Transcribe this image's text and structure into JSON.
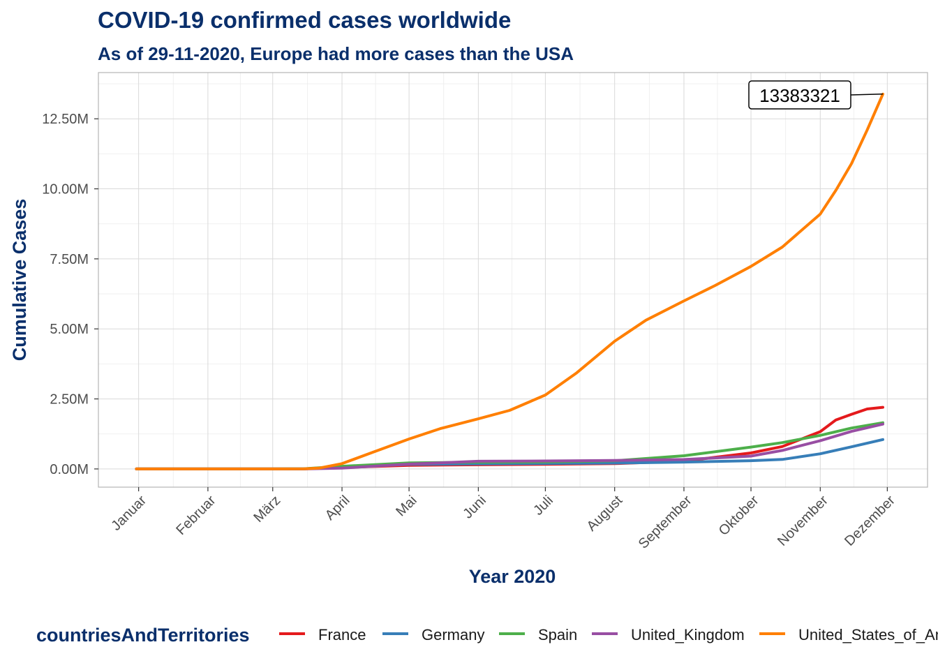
{
  "chart_data": {
    "type": "line",
    "title": "COVID-19 confirmed cases worldwide",
    "subtitle": "As of 29-11-2020, Europe had more cases than the USA",
    "xlabel": "Year 2020",
    "ylabel": "Cumulative Cases",
    "x_ticks": [
      "Januar",
      "Februar",
      "März",
      "April",
      "Mai",
      "Juni",
      "Juli",
      "August",
      "September",
      "Oktober",
      "November",
      "Dezember"
    ],
    "x_tick_dates": [
      "2020-01-01",
      "2020-02-01",
      "2020-03-01",
      "2020-04-01",
      "2020-05-01",
      "2020-06-01",
      "2020-07-01",
      "2020-08-01",
      "2020-09-01",
      "2020-10-01",
      "2020-11-01",
      "2020-12-01"
    ],
    "xlim": [
      "2019-12-14",
      "2020-12-19"
    ],
    "y_ticks": [
      "0.00M",
      "2.50M",
      "5.00M",
      "7.50M",
      "10.00M",
      "12.50M"
    ],
    "y_tick_values": [
      0,
      2500000,
      5000000,
      7500000,
      10000000,
      12500000
    ],
    "ylim": [
      -650000,
      14150000
    ],
    "grid": true,
    "legend": {
      "title": "countriesAndTerritories",
      "position": "bottom"
    },
    "annotation": {
      "label": "13383321",
      "date": "2020-11-29",
      "value": 13383321
    },
    "series": [
      {
        "name": "France",
        "color": "#e41a1c",
        "points": [
          [
            "2019-12-31",
            0
          ],
          [
            "2020-03-01",
            100
          ],
          [
            "2020-03-15",
            5400
          ],
          [
            "2020-04-01",
            52000
          ],
          [
            "2020-05-01",
            130000
          ],
          [
            "2020-06-01",
            150000
          ],
          [
            "2020-07-01",
            165000
          ],
          [
            "2020-08-01",
            190000
          ],
          [
            "2020-09-01",
            280000
          ],
          [
            "2020-10-01",
            570000
          ],
          [
            "2020-10-15",
            800000
          ],
          [
            "2020-11-01",
            1330000
          ],
          [
            "2020-11-08",
            1750000
          ],
          [
            "2020-11-15",
            1950000
          ],
          [
            "2020-11-22",
            2140000
          ],
          [
            "2020-11-29",
            2200000
          ]
        ]
      },
      {
        "name": "Germany",
        "color": "#377eb8",
        "points": [
          [
            "2019-12-31",
            0
          ],
          [
            "2020-03-01",
            130
          ],
          [
            "2020-03-15",
            4800
          ],
          [
            "2020-04-01",
            72000
          ],
          [
            "2020-05-01",
            162000
          ],
          [
            "2020-06-01",
            181000
          ],
          [
            "2020-07-01",
            195000
          ],
          [
            "2020-08-01",
            210000
          ],
          [
            "2020-09-01",
            245000
          ],
          [
            "2020-10-01",
            295000
          ],
          [
            "2020-10-15",
            340000
          ],
          [
            "2020-11-01",
            540000
          ],
          [
            "2020-11-15",
            790000
          ],
          [
            "2020-11-29",
            1050000
          ]
        ]
      },
      {
        "name": "Spain",
        "color": "#4daf4a",
        "points": [
          [
            "2019-12-31",
            0
          ],
          [
            "2020-03-01",
            80
          ],
          [
            "2020-03-15",
            7700
          ],
          [
            "2020-04-01",
            95000
          ],
          [
            "2020-05-01",
            215000
          ],
          [
            "2020-06-01",
            240000
          ],
          [
            "2020-07-01",
            250000
          ],
          [
            "2020-08-01",
            290000
          ],
          [
            "2020-09-01",
            470000
          ],
          [
            "2020-10-01",
            780000
          ],
          [
            "2020-10-15",
            940000
          ],
          [
            "2020-11-01",
            1200000
          ],
          [
            "2020-11-15",
            1460000
          ],
          [
            "2020-11-29",
            1650000
          ]
        ]
      },
      {
        "name": "United_Kingdom",
        "color": "#984ea3",
        "points": [
          [
            "2019-12-31",
            0
          ],
          [
            "2020-03-01",
            36
          ],
          [
            "2020-03-15",
            1140
          ],
          [
            "2020-04-01",
            29000
          ],
          [
            "2020-05-01",
            172000
          ],
          [
            "2020-06-01",
            275000
          ],
          [
            "2020-07-01",
            285000
          ],
          [
            "2020-08-01",
            303000
          ],
          [
            "2020-09-01",
            336000
          ],
          [
            "2020-10-01",
            460000
          ],
          [
            "2020-10-15",
            660000
          ],
          [
            "2020-11-01",
            1010000
          ],
          [
            "2020-11-15",
            1340000
          ],
          [
            "2020-11-29",
            1600000
          ]
        ]
      },
      {
        "name": "United_States_of_America",
        "color": "#ff7f00",
        "points": [
          [
            "2019-12-31",
            0
          ],
          [
            "2020-03-01",
            75
          ],
          [
            "2020-03-15",
            3500
          ],
          [
            "2020-03-22",
            33000
          ],
          [
            "2020-04-01",
            190000
          ],
          [
            "2020-04-15",
            600000
          ],
          [
            "2020-05-01",
            1070000
          ],
          [
            "2020-05-15",
            1440000
          ],
          [
            "2020-06-01",
            1790000
          ],
          [
            "2020-06-15",
            2090000
          ],
          [
            "2020-07-01",
            2640000
          ],
          [
            "2020-07-15",
            3430000
          ],
          [
            "2020-08-01",
            4560000
          ],
          [
            "2020-08-15",
            5310000
          ],
          [
            "2020-09-01",
            6000000
          ],
          [
            "2020-09-15",
            6550000
          ],
          [
            "2020-10-01",
            7230000
          ],
          [
            "2020-10-15",
            7920000
          ],
          [
            "2020-11-01",
            9100000
          ],
          [
            "2020-11-08",
            9950000
          ],
          [
            "2020-11-15",
            10900000
          ],
          [
            "2020-11-22",
            12100000
          ],
          [
            "2020-11-29",
            13383321
          ]
        ]
      }
    ]
  }
}
